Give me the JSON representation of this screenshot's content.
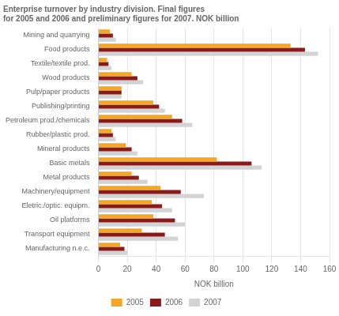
{
  "chart_data": {
    "type": "bar",
    "orientation": "horizontal",
    "title": "Enterprise turnover by industry division. Final figures\nfor 2005 and 2006 and preliminary figures for 2007. NOK billion",
    "xlabel": "NOK billion",
    "categories": [
      "Mining and quarrying",
      "Food products",
      "Textile/textile prod.",
      "Wood products",
      "Pulp/paper products",
      "Publishing/printing",
      "Petroleum prod./chemicals",
      "Rubber/plastic prod.",
      "Mineral products",
      "Basic metals",
      "Metal products",
      "Machinery/equipment",
      "Eletric./optic. equipm.",
      "Oil platforms",
      "Transport equipment",
      "Manufacturing n.e.c."
    ],
    "series": [
      {
        "name": "2005",
        "color": "#F5A623",
        "values": [
          8,
          133,
          6,
          23,
          16,
          38,
          51,
          9,
          19,
          82,
          23,
          43,
          37,
          38,
          30,
          15
        ]
      },
      {
        "name": "2006",
        "color": "#8B1A1A",
        "values": [
          10,
          143,
          7,
          27,
          16,
          42,
          58,
          10,
          23,
          106,
          28,
          57,
          44,
          53,
          46,
          18
        ]
      },
      {
        "name": "2007",
        "color": "#D3D3D3",
        "values": [
          12,
          152,
          9,
          31,
          16,
          46,
          65,
          12,
          27,
          113,
          34,
          73,
          51,
          60,
          55,
          20
        ]
      }
    ],
    "xlim": [
      0,
      160
    ],
    "xticks": [
      0,
      20,
      40,
      60,
      80,
      100,
      120,
      140,
      160
    ],
    "grid": true,
    "legend": "bottom"
  }
}
